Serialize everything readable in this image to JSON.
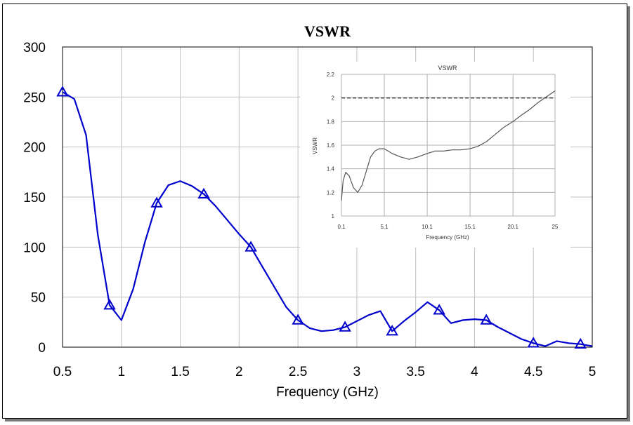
{
  "chart_data": [
    {
      "type": "line",
      "title": "VSWR",
      "xlabel": "Frequency (GHz)",
      "ylabel": "",
      "xlim": [
        0.5,
        5
      ],
      "ylim": [
        0,
        300
      ],
      "xticks": [
        0.5,
        1,
        1.5,
        2,
        2.5,
        3,
        3.5,
        4,
        4.5,
        5
      ],
      "xtick_labels": [
        "0.5",
        "1",
        "1.5",
        "2",
        "2.5",
        "3",
        "3.5",
        "4",
        "4.5",
        "5"
      ],
      "yticks": [
        0,
        50,
        100,
        150,
        200,
        250,
        300
      ],
      "ytick_labels": [
        "0",
        "50",
        "100",
        "150",
        "200",
        "250",
        "300"
      ],
      "grid": true,
      "series": [
        {
          "name": "VSWR",
          "color": "#0000cc",
          "x": [
            0.5,
            0.6,
            0.7,
            0.8,
            0.9,
            1.0,
            1.1,
            1.2,
            1.3,
            1.4,
            1.5,
            1.6,
            1.7,
            1.8,
            1.9,
            2.0,
            2.1,
            2.2,
            2.3,
            2.4,
            2.5,
            2.6,
            2.7,
            2.8,
            2.9,
            3.0,
            3.1,
            3.2,
            3.3,
            3.4,
            3.5,
            3.6,
            3.7,
            3.8,
            3.9,
            4.0,
            4.1,
            4.2,
            4.3,
            4.4,
            4.5,
            4.6,
            4.7,
            4.8,
            4.9,
            5.0
          ],
          "y": [
            255,
            248,
            212,
            112,
            42,
            27,
            58,
            105,
            144,
            162,
            166,
            161,
            153,
            141,
            127,
            113,
            100,
            80,
            60,
            40,
            27,
            19,
            16,
            17,
            20,
            26,
            32,
            36,
            16,
            26,
            35,
            45,
            37,
            24,
            27,
            28,
            27,
            20,
            14,
            8,
            4,
            1,
            6,
            4,
            3,
            1
          ],
          "markers_x": [
            0.5,
            0.9,
            1.3,
            1.7,
            2.1,
            2.5,
            2.9,
            3.3,
            3.7,
            4.1,
            4.5,
            4.9
          ],
          "marker": "triangle"
        }
      ]
    },
    {
      "type": "line",
      "title": "VSWR",
      "xlabel": "Frequency (GHz)",
      "ylabel": "VSWR",
      "xlim": [
        0.1,
        25
      ],
      "ylim": [
        1,
        2.2
      ],
      "xticks": [
        0.1,
        5.1,
        10.1,
        15.1,
        20.1,
        25
      ],
      "xtick_labels": [
        "0.1",
        "5.1",
        "10.1",
        "15.1",
        "20.1",
        "25"
      ],
      "yticks": [
        1,
        1.2,
        1.4,
        1.6,
        1.8,
        2,
        2.2
      ],
      "ytick_labels": [
        "1",
        "1.2",
        "1.4",
        "1.6",
        "1.8",
        "2",
        "2.2"
      ],
      "grid": true,
      "reference_line": 2,
      "series": [
        {
          "name": "VSWR",
          "color": "#555555",
          "x": [
            0.1,
            0.3,
            0.6,
            1.0,
            1.5,
            2.0,
            2.5,
            3.0,
            3.5,
            4.0,
            4.5,
            5.1,
            6.0,
            7.0,
            8.0,
            9.0,
            10.1,
            11.0,
            12.0,
            13.0,
            14.0,
            15.1,
            16.0,
            17.0,
            18.0,
            19.0,
            20.1,
            21.0,
            22.0,
            23.0,
            24.0,
            25.0
          ],
          "y": [
            1.13,
            1.3,
            1.37,
            1.34,
            1.24,
            1.2,
            1.26,
            1.38,
            1.5,
            1.55,
            1.57,
            1.57,
            1.53,
            1.5,
            1.48,
            1.5,
            1.53,
            1.55,
            1.55,
            1.56,
            1.56,
            1.57,
            1.59,
            1.63,
            1.69,
            1.75,
            1.8,
            1.85,
            1.9,
            1.96,
            2.01,
            2.06
          ]
        }
      ]
    }
  ]
}
